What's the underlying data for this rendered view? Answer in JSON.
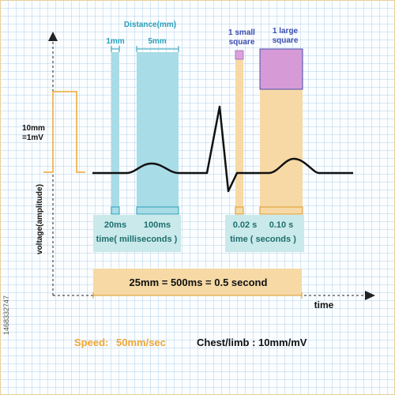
{
  "colors": {
    "teal": "#2aa0b8",
    "teal_fill": "#a8dce6",
    "orange": "#f0a734",
    "orange_fill": "#f6d9a5",
    "purple": "#c97fc8",
    "purple_edge": "#4a4fb0",
    "caption_bg": "#c9e9ea",
    "ecg_line": "#111111"
  },
  "labels": {
    "distance": "Distance(mm)",
    "one_mm": "1mm",
    "five_mm": "5mm",
    "small_square": [
      "1 small",
      "square"
    ],
    "large_square": [
      "1 large",
      "square"
    ],
    "calibration": [
      "10mm",
      "=1mV"
    ],
    "y_axis": "voltage(amplitude)",
    "x_axis": "time",
    "ms_20": "20ms",
    "ms_100": "100ms",
    "time_ms": "time( milliseconds )",
    "s_002": "0.02 s",
    "s_010": "0.10 s",
    "time_s": "time ( seconds )",
    "equation": "25mm = 500ms = 0.5 second"
  },
  "footer": {
    "speed_label": "Speed:",
    "speed_value": "50mm/sec",
    "limb": "Chest/limb : 10mm/mV"
  },
  "stock_id": "1468332747"
}
